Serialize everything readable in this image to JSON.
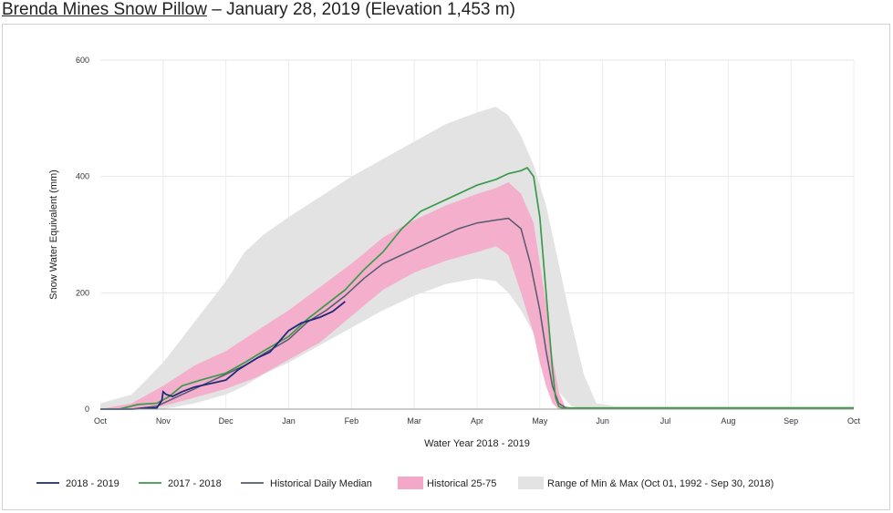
{
  "title": {
    "station": "Brenda Mines Snow Pillow",
    "rest": " – January 28, 2019 (Elevation 1,453 m)"
  },
  "chart_data": {
    "type": "line",
    "title": "Brenda Mines Snow Pillow – January 28, 2019 (Elevation 1,453 m)",
    "xlabel": "Water Year 2018 - 2019",
    "ylabel": "Snow Water Equivalent (mm)",
    "ylim": [
      0,
      600
    ],
    "yticks": [
      0,
      200,
      400,
      600
    ],
    "xlim": [
      0,
      12
    ],
    "xticks": [
      "Oct",
      "Nov",
      "Dec",
      "Jan",
      "Feb",
      "Mar",
      "Apr",
      "May",
      "Jun",
      "Jul",
      "Aug",
      "Sep",
      "Oct"
    ],
    "grid": true,
    "legend_position": "bottom",
    "legend": [
      "2018 - 2019",
      "2017 - 2018",
      "Historical Daily Median",
      "Historical 25-75",
      "Range of Min & Max (Oct 01, 1992 - Sep 30, 2018)"
    ],
    "series": [
      {
        "name": "2018 - 2019",
        "color": "#1f2a7a",
        "x": [
          0,
          0.5,
          0.9,
          0.98,
          1.0,
          1.05,
          1.15,
          1.3,
          1.5,
          1.8,
          2.0,
          2.2,
          2.5,
          2.7,
          3.0,
          3.2,
          3.5,
          3.7,
          3.9
        ],
        "y": [
          0,
          0,
          2,
          15,
          30,
          25,
          22,
          30,
          38,
          45,
          50,
          68,
          88,
          98,
          135,
          148,
          158,
          168,
          185
        ]
      },
      {
        "name": "2017 - 2018",
        "color": "#3a9a4a",
        "x": [
          0,
          0.3,
          0.6,
          0.9,
          1.1,
          1.3,
          1.6,
          2.0,
          2.3,
          2.6,
          3.0,
          3.3,
          3.6,
          3.9,
          4.2,
          4.5,
          4.8,
          5.1,
          5.4,
          5.7,
          6.0,
          6.3,
          6.5,
          6.7,
          6.8,
          6.9,
          7.0,
          7.1,
          7.2,
          7.25,
          7.3,
          7.35,
          7.5,
          8,
          9,
          10,
          11,
          12
        ],
        "y": [
          0,
          0,
          8,
          10,
          22,
          40,
          50,
          62,
          80,
          100,
          125,
          155,
          180,
          205,
          240,
          270,
          310,
          340,
          355,
          370,
          385,
          395,
          405,
          410,
          415,
          400,
          330,
          200,
          70,
          20,
          5,
          2,
          2,
          2,
          2,
          2,
          2,
          2
        ]
      },
      {
        "name": "Historical Daily Median",
        "color": "#555a70",
        "x": [
          0,
          0.5,
          0.9,
          1.2,
          1.5,
          1.8,
          2.0,
          2.3,
          2.6,
          3.0,
          3.3,
          3.6,
          3.9,
          4.2,
          4.5,
          4.8,
          5.1,
          5.4,
          5.7,
          6.0,
          6.3,
          6.5,
          6.7,
          6.85,
          7.0,
          7.1,
          7.2,
          7.3,
          7.4,
          7.5,
          8,
          9,
          10,
          11,
          12
        ],
        "y": [
          0,
          0,
          5,
          20,
          35,
          50,
          60,
          75,
          95,
          120,
          150,
          170,
          195,
          225,
          250,
          265,
          280,
          295,
          310,
          320,
          325,
          328,
          310,
          250,
          170,
          100,
          40,
          10,
          3,
          1,
          1,
          1,
          1,
          1,
          1
        ]
      },
      {
        "name": "Historical 25-75",
        "color": "#f4a8c8",
        "x": [
          0,
          0.5,
          1.0,
          1.5,
          2.0,
          2.5,
          3.0,
          3.5,
          4.0,
          4.5,
          5.0,
          5.5,
          6.0,
          6.3,
          6.5,
          6.7,
          6.9,
          7.0,
          7.1,
          7.2,
          7.3,
          7.4,
          7.6,
          8,
          9,
          10,
          11,
          12
        ],
        "low": [
          0,
          0,
          5,
          20,
          35,
          55,
          85,
          115,
          160,
          205,
          235,
          255,
          270,
          280,
          265,
          200,
          130,
          80,
          40,
          10,
          0,
          0,
          0,
          0,
          0,
          0,
          0,
          0
        ],
        "high": [
          0,
          10,
          40,
          75,
          100,
          135,
          170,
          210,
          250,
          295,
          325,
          350,
          370,
          380,
          390,
          370,
          320,
          250,
          180,
          90,
          30,
          5,
          0,
          0,
          0,
          0,
          0,
          0
        ]
      },
      {
        "name": "Range of Min & Max (Oct 01, 1992 - Sep 30, 2018)",
        "color": "#e3e3e3",
        "x": [
          0,
          0.5,
          1.0,
          1.5,
          2.0,
          2.3,
          2.6,
          3.0,
          3.5,
          4.0,
          4.5,
          5.0,
          5.5,
          6.0,
          6.3,
          6.5,
          6.7,
          6.9,
          7.1,
          7.3,
          7.5,
          7.7,
          7.9,
          8.2,
          9,
          10,
          11,
          12
        ],
        "low": [
          0,
          0,
          0,
          10,
          25,
          40,
          60,
          80,
          110,
          140,
          170,
          195,
          215,
          225,
          220,
          200,
          170,
          130,
          80,
          30,
          5,
          0,
          0,
          0,
          0,
          0,
          0,
          0
        ],
        "high": [
          10,
          25,
          80,
          150,
          220,
          270,
          300,
          330,
          365,
          400,
          430,
          460,
          490,
          510,
          520,
          505,
          470,
          420,
          350,
          250,
          150,
          60,
          10,
          5,
          5,
          5,
          5,
          5
        ]
      }
    ]
  }
}
